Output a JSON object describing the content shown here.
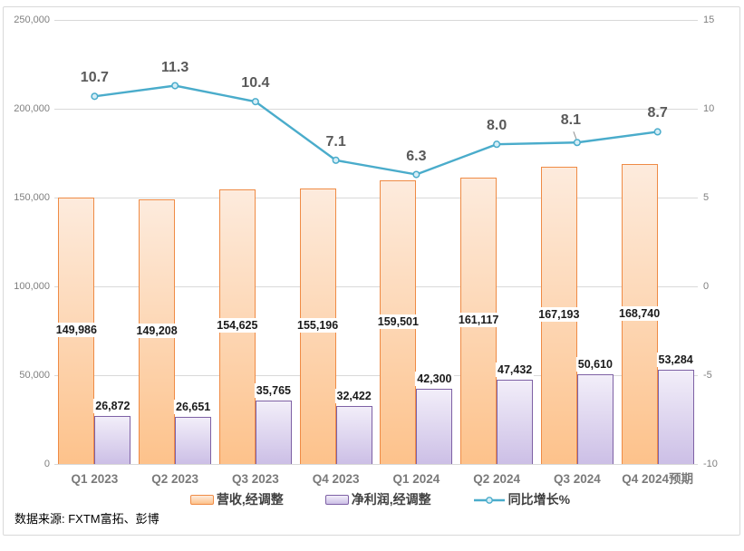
{
  "chart_data": {
    "type": "combo-bar-line",
    "title": "",
    "categories": [
      "Q1 2023",
      "Q2 2023",
      "Q3 2023",
      "Q4 2023",
      "Q1 2024",
      "Q2 2024",
      "Q3 2024",
      "Q4 2024预期"
    ],
    "series": [
      {
        "name": "营收,经调整",
        "type": "bar",
        "axis": "left",
        "values": [
          149986,
          149208,
          154625,
          155196,
          159501,
          161117,
          167193,
          168740
        ],
        "labels": [
          "149,986",
          "149,208",
          "154,625",
          "155,196",
          "159,501",
          "161,117",
          "167,193",
          "168,740"
        ],
        "label_position": "inside-center",
        "fill_top": "#FDEBDD",
        "fill_bottom": "#FDC28B",
        "border": "#EF8B45"
      },
      {
        "name": "净利润,经调整",
        "type": "bar",
        "axis": "left",
        "values": [
          26872,
          26651,
          35765,
          32422,
          42300,
          47432,
          50610,
          53284
        ],
        "labels": [
          "26,872",
          "26,651",
          "35,765",
          "32,422",
          "42,300",
          "47,432",
          "50,610",
          "53,284"
        ],
        "label_position": "outside-end",
        "fill_top": "#F2EEF9",
        "fill_bottom": "#CCBFE6",
        "border": "#7E61A5"
      },
      {
        "name": "同比增长%",
        "type": "line",
        "axis": "right",
        "values": [
          10.7,
          11.3,
          10.4,
          7.1,
          6.3,
          8.0,
          8.1,
          8.7
        ],
        "labels": [
          "10.7",
          "11.3",
          "10.4",
          "7.1",
          "6.3",
          "8.0",
          "8.1",
          "8.7"
        ],
        "color": "#4AACCB",
        "marker_fill": "#D6EEF7"
      }
    ],
    "left_axis": {
      "min": 0,
      "max": 250000,
      "tick_values": [
        250000,
        200000,
        150000,
        100000,
        50000,
        0
      ],
      "tick_labels": [
        "250,000",
        "200,000",
        "150,000",
        "100,000",
        "50,000",
        "0"
      ]
    },
    "right_axis": {
      "min": -10,
      "max": 15,
      "tick_values": [
        15,
        10,
        5,
        0,
        -5,
        -10
      ],
      "tick_labels": [
        "15",
        "10",
        "5",
        "0",
        "-5",
        "-10"
      ]
    },
    "grid": true,
    "legend_position": "bottom",
    "gridline_color": "#D9D9D9",
    "leader_line_color": "#8C8C8C"
  },
  "source": {
    "text": "数据来源: FXTM富拓、彭博"
  }
}
